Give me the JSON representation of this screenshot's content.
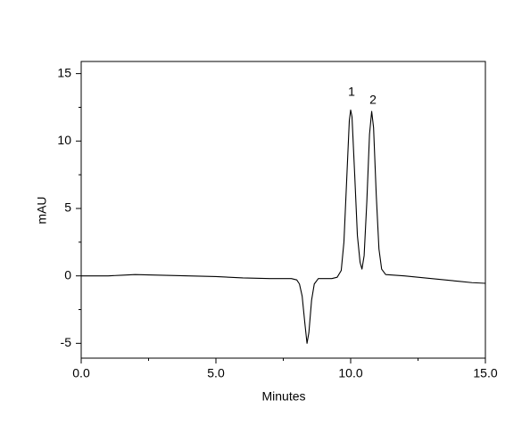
{
  "chart_data": {
    "type": "line",
    "x_label": "Minutes",
    "y_label": "mAU",
    "annotations": [
      "1",
      "2"
    ],
    "xlim": [
      0,
      15
    ],
    "ylim": [
      -6.1,
      15.9
    ],
    "xticks": [
      {
        "value": 0,
        "label": "0.0"
      },
      {
        "value": 5,
        "label": "5.0"
      },
      {
        "value": 10,
        "label": "10.0"
      },
      {
        "value": 15,
        "label": "15.0"
      }
    ],
    "xminorticks": [
      2.5,
      7.5,
      12.5
    ],
    "yticks": [
      -5,
      0,
      5,
      10,
      15
    ],
    "yminorticks": [
      -2.5,
      2.5,
      7.5,
      12.5
    ],
    "grid": false,
    "series": [
      {
        "color": "#000000",
        "x": [
          0,
          1,
          1.5,
          2,
          3,
          4,
          5,
          6,
          7,
          7.8,
          8.0,
          8.1,
          8.2,
          8.3,
          8.38,
          8.45,
          8.55,
          8.65,
          8.8,
          9.0,
          9.3,
          9.5,
          9.65,
          9.75,
          9.85,
          9.95,
          10.0,
          10.05,
          10.15,
          10.25,
          10.35,
          10.42,
          10.5,
          10.6,
          10.7,
          10.78,
          10.85,
          10.95,
          11.05,
          11.15,
          11.3,
          12,
          13,
          14,
          14.5,
          15
        ],
        "values": [
          0,
          0,
          0.05,
          0.1,
          0.05,
          0,
          -0.05,
          -0.15,
          -0.2,
          -0.2,
          -0.3,
          -0.6,
          -1.5,
          -3.5,
          -5.0,
          -4.2,
          -1.8,
          -0.6,
          -0.2,
          -0.2,
          -0.2,
          -0.1,
          0.4,
          2.5,
          7,
          11.5,
          12.3,
          11.8,
          7.5,
          3,
          1,
          0.5,
          1.5,
          5.5,
          10.5,
          12.2,
          11,
          6,
          2,
          0.5,
          0.1,
          0,
          -0.2,
          -0.4,
          -0.5,
          -0.55
        ]
      }
    ]
  }
}
